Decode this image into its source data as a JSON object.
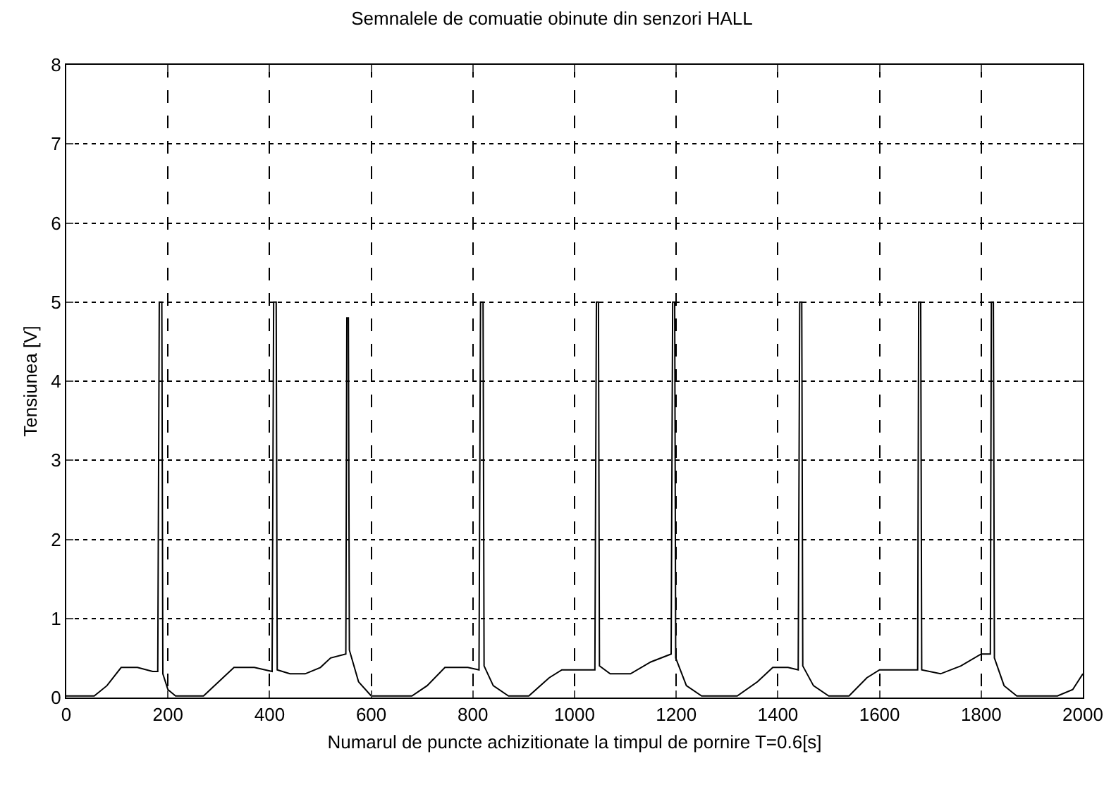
{
  "chart_data": {
    "type": "line",
    "title": "Semnalele de comuatie obinute din senzori HALL",
    "xlabel": "Numarul de puncte achizitionate la timpul de pornire T=0.6[s]",
    "ylabel": "Tensiunea [V]",
    "x": [
      0,
      55,
      80,
      108,
      140,
      170,
      180,
      183,
      188,
      190,
      200,
      215,
      270,
      300,
      330,
      370,
      405,
      408,
      413,
      415,
      440,
      470,
      500,
      520,
      550,
      552,
      555,
      557,
      575,
      600,
      680,
      710,
      745,
      790,
      812,
      815,
      820,
      822,
      840,
      870,
      910,
      950,
      975,
      1040,
      1043,
      1047,
      1049,
      1070,
      1110,
      1150,
      1190,
      1193,
      1197,
      1199,
      1220,
      1250,
      1320,
      1360,
      1390,
      1420,
      1440,
      1443,
      1447,
      1449,
      1470,
      1500,
      1540,
      1575,
      1600,
      1675,
      1677,
      1681,
      1683,
      1720,
      1760,
      1800,
      1818,
      1820,
      1824,
      1826,
      1845,
      1870,
      1950,
      1980,
      2000
    ],
    "series": [
      {
        "color": "#000000",
        "values": [
          0.02,
          0.02,
          0.15,
          0.38,
          0.38,
          0.33,
          0.33,
          5,
          5,
          0.3,
          0.1,
          0.02,
          0.02,
          0.2,
          0.38,
          0.38,
          0.33,
          5,
          5,
          0.35,
          0.3,
          0.3,
          0.38,
          0.5,
          0.55,
          4.8,
          4.8,
          0.6,
          0.2,
          0.02,
          0.02,
          0.15,
          0.38,
          0.38,
          0.35,
          5,
          5,
          0.4,
          0.15,
          0.02,
          0.02,
          0.25,
          0.35,
          0.35,
          5,
          5,
          0.4,
          0.3,
          0.3,
          0.45,
          0.55,
          5,
          5,
          0.5,
          0.15,
          0.02,
          0.02,
          0.2,
          0.38,
          0.38,
          0.35,
          5,
          5,
          0.4,
          0.15,
          0.02,
          0.02,
          0.25,
          0.35,
          0.35,
          5,
          5,
          0.35,
          0.3,
          0.4,
          0.55,
          0.55,
          5,
          5,
          0.5,
          0.15,
          0.02,
          0.02,
          0.1,
          0.3
        ]
      }
    ],
    "xlim": [
      0,
      2000
    ],
    "xticks": [
      0,
      200,
      400,
      600,
      800,
      1000,
      1200,
      1400,
      1600,
      1800,
      2000
    ],
    "ylim": [
      0,
      8
    ],
    "yticks": [
      0,
      1,
      2,
      3,
      4,
      5,
      6,
      7,
      8
    ],
    "grid": true,
    "marker": "none",
    "line_style": "solid"
  }
}
